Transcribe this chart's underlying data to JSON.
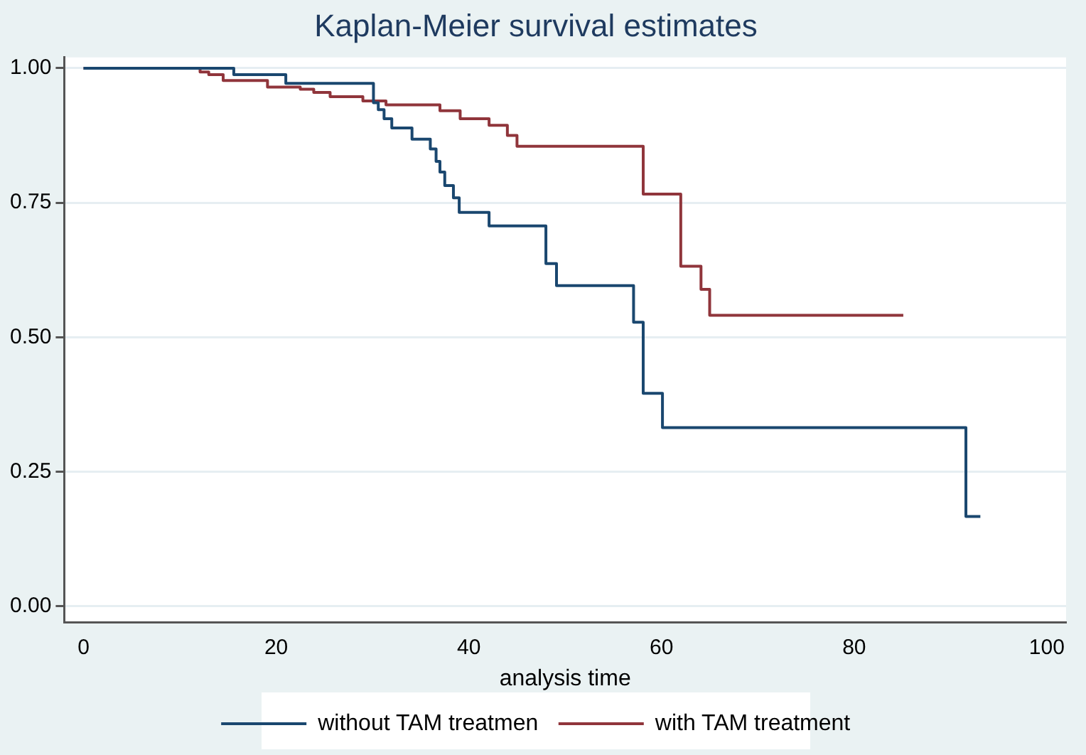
{
  "chart_data": {
    "type": "step",
    "title": "Kaplan-Meier survival estimates",
    "xlabel": "analysis time",
    "xlim": [
      -2,
      102
    ],
    "xticks": [
      0,
      20,
      40,
      60,
      80,
      100
    ],
    "ylim": [
      -0.03,
      1.02
    ],
    "yticks": [
      {
        "value": 0,
        "label": "0.00"
      },
      {
        "value": 0.25,
        "label": "0.25"
      },
      {
        "value": 0.5,
        "label": "0.50"
      },
      {
        "value": 0.75,
        "label": "0.75"
      },
      {
        "value": 1,
        "label": "1.00"
      }
    ],
    "grid": "y",
    "legend": "bottom",
    "marker": "none",
    "line_style": "solid",
    "series": [
      {
        "name": "without TAM treatmen",
        "color": "#1a476f",
        "x": [
          0,
          15.6,
          21.0,
          30.1,
          30.6,
          31.2,
          32.0,
          34.1,
          36.0,
          36.6,
          37.0,
          37.5,
          38.4,
          39.0,
          42.1,
          48.0,
          49.1,
          57.1,
          58.1,
          60.1,
          91.6,
          93.1
        ],
        "values": [
          1,
          0.988,
          0.972,
          0.936,
          0.923,
          0.906,
          0.889,
          0.868,
          0.85,
          0.827,
          0.807,
          0.782,
          0.759,
          0.732,
          0.707,
          0.637,
          0.596,
          0.528,
          0.396,
          0.332,
          0.167,
          0.167
        ]
      },
      {
        "name": "with TAM treatment",
        "color": "#90353b",
        "x": [
          0,
          12.1,
          13.0,
          14.5,
          19.1,
          22.5,
          23.9,
          25.6,
          29.0,
          31.4,
          37.0,
          39.1,
          42.1,
          44.0,
          45.0,
          58.1,
          62.0,
          64.1,
          65.0,
          85.1
        ],
        "values": [
          1,
          0.993,
          0.988,
          0.977,
          0.965,
          0.961,
          0.955,
          0.947,
          0.939,
          0.932,
          0.921,
          0.906,
          0.894,
          0.875,
          0.855,
          0.766,
          0.632,
          0.589,
          0.541,
          0.541
        ]
      }
    ]
  }
}
